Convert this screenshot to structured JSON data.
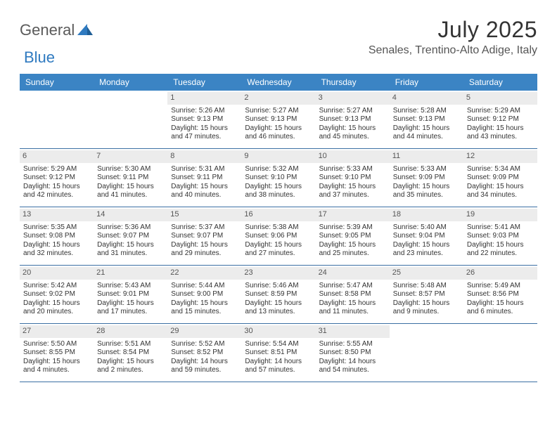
{
  "brand": {
    "part1": "General",
    "part2": "Blue"
  },
  "title": "July 2025",
  "location": "Senales, Trentino-Alto Adige, Italy",
  "colors": {
    "header_bg": "#3b84c4",
    "header_text": "#ffffff",
    "row_border": "#3b6fa3",
    "daynum_bg": "#ececec",
    "brand_gray": "#5a5a5a",
    "brand_blue": "#2f7ac0"
  },
  "day_names": [
    "Sunday",
    "Monday",
    "Tuesday",
    "Wednesday",
    "Thursday",
    "Friday",
    "Saturday"
  ],
  "weeks": [
    [
      null,
      null,
      {
        "n": "1",
        "sr": "5:26 AM",
        "ss": "9:13 PM",
        "dl": "15 hours and 47 minutes."
      },
      {
        "n": "2",
        "sr": "5:27 AM",
        "ss": "9:13 PM",
        "dl": "15 hours and 46 minutes."
      },
      {
        "n": "3",
        "sr": "5:27 AM",
        "ss": "9:13 PM",
        "dl": "15 hours and 45 minutes."
      },
      {
        "n": "4",
        "sr": "5:28 AM",
        "ss": "9:13 PM",
        "dl": "15 hours and 44 minutes."
      },
      {
        "n": "5",
        "sr": "5:29 AM",
        "ss": "9:12 PM",
        "dl": "15 hours and 43 minutes."
      }
    ],
    [
      {
        "n": "6",
        "sr": "5:29 AM",
        "ss": "9:12 PM",
        "dl": "15 hours and 42 minutes."
      },
      {
        "n": "7",
        "sr": "5:30 AM",
        "ss": "9:11 PM",
        "dl": "15 hours and 41 minutes."
      },
      {
        "n": "8",
        "sr": "5:31 AM",
        "ss": "9:11 PM",
        "dl": "15 hours and 40 minutes."
      },
      {
        "n": "9",
        "sr": "5:32 AM",
        "ss": "9:10 PM",
        "dl": "15 hours and 38 minutes."
      },
      {
        "n": "10",
        "sr": "5:33 AM",
        "ss": "9:10 PM",
        "dl": "15 hours and 37 minutes."
      },
      {
        "n": "11",
        "sr": "5:33 AM",
        "ss": "9:09 PM",
        "dl": "15 hours and 35 minutes."
      },
      {
        "n": "12",
        "sr": "5:34 AM",
        "ss": "9:09 PM",
        "dl": "15 hours and 34 minutes."
      }
    ],
    [
      {
        "n": "13",
        "sr": "5:35 AM",
        "ss": "9:08 PM",
        "dl": "15 hours and 32 minutes."
      },
      {
        "n": "14",
        "sr": "5:36 AM",
        "ss": "9:07 PM",
        "dl": "15 hours and 31 minutes."
      },
      {
        "n": "15",
        "sr": "5:37 AM",
        "ss": "9:07 PM",
        "dl": "15 hours and 29 minutes."
      },
      {
        "n": "16",
        "sr": "5:38 AM",
        "ss": "9:06 PM",
        "dl": "15 hours and 27 minutes."
      },
      {
        "n": "17",
        "sr": "5:39 AM",
        "ss": "9:05 PM",
        "dl": "15 hours and 25 minutes."
      },
      {
        "n": "18",
        "sr": "5:40 AM",
        "ss": "9:04 PM",
        "dl": "15 hours and 23 minutes."
      },
      {
        "n": "19",
        "sr": "5:41 AM",
        "ss": "9:03 PM",
        "dl": "15 hours and 22 minutes."
      }
    ],
    [
      {
        "n": "20",
        "sr": "5:42 AM",
        "ss": "9:02 PM",
        "dl": "15 hours and 20 minutes."
      },
      {
        "n": "21",
        "sr": "5:43 AM",
        "ss": "9:01 PM",
        "dl": "15 hours and 17 minutes."
      },
      {
        "n": "22",
        "sr": "5:44 AM",
        "ss": "9:00 PM",
        "dl": "15 hours and 15 minutes."
      },
      {
        "n": "23",
        "sr": "5:46 AM",
        "ss": "8:59 PM",
        "dl": "15 hours and 13 minutes."
      },
      {
        "n": "24",
        "sr": "5:47 AM",
        "ss": "8:58 PM",
        "dl": "15 hours and 11 minutes."
      },
      {
        "n": "25",
        "sr": "5:48 AM",
        "ss": "8:57 PM",
        "dl": "15 hours and 9 minutes."
      },
      {
        "n": "26",
        "sr": "5:49 AM",
        "ss": "8:56 PM",
        "dl": "15 hours and 6 minutes."
      }
    ],
    [
      {
        "n": "27",
        "sr": "5:50 AM",
        "ss": "8:55 PM",
        "dl": "15 hours and 4 minutes."
      },
      {
        "n": "28",
        "sr": "5:51 AM",
        "ss": "8:54 PM",
        "dl": "15 hours and 2 minutes."
      },
      {
        "n": "29",
        "sr": "5:52 AM",
        "ss": "8:52 PM",
        "dl": "14 hours and 59 minutes."
      },
      {
        "n": "30",
        "sr": "5:54 AM",
        "ss": "8:51 PM",
        "dl": "14 hours and 57 minutes."
      },
      {
        "n": "31",
        "sr": "5:55 AM",
        "ss": "8:50 PM",
        "dl": "14 hours and 54 minutes."
      },
      null,
      null
    ]
  ],
  "labels": {
    "sunrise": "Sunrise:",
    "sunset": "Sunset:",
    "daylight": "Daylight:"
  }
}
